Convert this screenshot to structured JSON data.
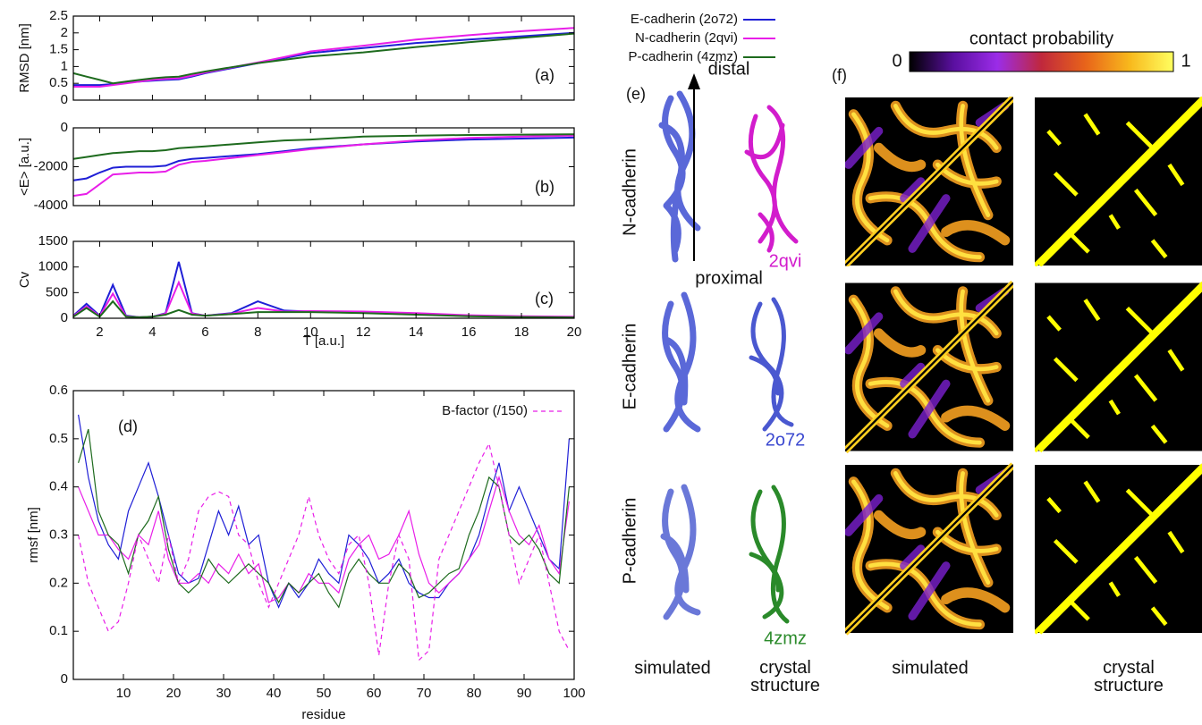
{
  "chart_data": [
    {
      "type": "line",
      "ylabel": "RMSD [nm]",
      "annotation": "(a)",
      "x": [
        1,
        1.5,
        2,
        2.5,
        3,
        3.5,
        4,
        4.5,
        5,
        5.5,
        6,
        7,
        8,
        9,
        10,
        12,
        14,
        16,
        18,
        20
      ],
      "xlim": [
        1,
        20
      ],
      "ylim": [
        0,
        2.5
      ],
      "yticks": [
        0,
        0.5,
        1,
        1.5,
        2,
        2.5
      ],
      "series": [
        {
          "name": "E-cadherin (2o72)",
          "color": "#1f1fd6",
          "values": [
            0.45,
            0.45,
            0.45,
            0.48,
            0.52,
            0.55,
            0.58,
            0.6,
            0.62,
            0.7,
            0.8,
            0.95,
            1.1,
            1.25,
            1.4,
            1.55,
            1.7,
            1.8,
            1.9,
            2.0
          ]
        },
        {
          "name": "N-cadherin (2qvi)",
          "color": "#e81ee8",
          "values": [
            0.4,
            0.4,
            0.4,
            0.45,
            0.5,
            0.55,
            0.6,
            0.63,
            0.65,
            0.73,
            0.82,
            0.97,
            1.12,
            1.28,
            1.45,
            1.62,
            1.8,
            1.93,
            2.05,
            2.15
          ]
        },
        {
          "name": "P-cadherin (4zmz)",
          "color": "#1e6b1e",
          "values": [
            0.8,
            0.7,
            0.6,
            0.5,
            0.55,
            0.6,
            0.65,
            0.68,
            0.7,
            0.78,
            0.85,
            0.98,
            1.1,
            1.2,
            1.3,
            1.42,
            1.58,
            1.72,
            1.85,
            1.98
          ]
        }
      ]
    },
    {
      "type": "line",
      "ylabel": "<E> [a.u.]",
      "annotation": "(b)",
      "x": [
        1,
        1.5,
        2,
        2.5,
        3,
        3.5,
        4,
        4.5,
        5,
        5.5,
        6,
        7,
        8,
        9,
        10,
        12,
        14,
        16,
        18,
        20
      ],
      "xlim": [
        1,
        20
      ],
      "ylim": [
        -4000,
        0
      ],
      "yticks": [
        -4000,
        -2000,
        0
      ],
      "series": [
        {
          "color": "#1f1fd6",
          "values": [
            -2700,
            -2600,
            -2300,
            -2050,
            -2000,
            -2000,
            -2000,
            -1950,
            -1700,
            -1600,
            -1550,
            -1450,
            -1350,
            -1200,
            -1050,
            -850,
            -700,
            -600,
            -550,
            -500
          ]
        },
        {
          "color": "#e81ee8",
          "values": [
            -3500,
            -3400,
            -2900,
            -2400,
            -2350,
            -2300,
            -2300,
            -2250,
            -1900,
            -1750,
            -1700,
            -1550,
            -1400,
            -1250,
            -1100,
            -850,
            -650,
            -520,
            -450,
            -400
          ]
        },
        {
          "color": "#1e6b1e",
          "values": [
            -1600,
            -1500,
            -1400,
            -1300,
            -1250,
            -1200,
            -1200,
            -1150,
            -1050,
            -1000,
            -950,
            -850,
            -750,
            -650,
            -600,
            -450,
            -400,
            -370,
            -350,
            -330
          ]
        }
      ]
    },
    {
      "type": "line",
      "ylabel": "Cv",
      "xlabel": "T [a.u.]",
      "annotation": "(c)",
      "x": [
        1,
        1.5,
        2,
        2.5,
        3,
        3.5,
        4,
        4.5,
        5,
        5.5,
        6,
        7,
        8,
        9,
        10,
        12,
        14,
        16,
        18,
        20
      ],
      "xlim": [
        1,
        20
      ],
      "xticks": [
        2,
        4,
        6,
        8,
        10,
        12,
        14,
        16,
        18,
        20
      ],
      "ylim": [
        0,
        1500
      ],
      "yticks": [
        0,
        500,
        1000,
        1500
      ],
      "series": [
        {
          "color": "#1f1fd6",
          "values": [
            50,
            280,
            50,
            650,
            50,
            20,
            30,
            100,
            1100,
            100,
            50,
            100,
            330,
            150,
            130,
            120,
            80,
            50,
            30,
            20
          ]
        },
        {
          "color": "#e81ee8",
          "values": [
            40,
            230,
            40,
            480,
            40,
            20,
            30,
            90,
            700,
            90,
            50,
            90,
            200,
            130,
            140,
            130,
            100,
            60,
            40,
            30
          ]
        },
        {
          "color": "#1e6b1e",
          "values": [
            30,
            200,
            30,
            330,
            30,
            20,
            30,
            70,
            160,
            70,
            50,
            80,
            120,
            120,
            120,
            100,
            70,
            40,
            25,
            15
          ]
        }
      ]
    },
    {
      "type": "line",
      "ylabel": "rmsf [nm]",
      "xlabel": "residue",
      "annotation": "(d)",
      "x": [
        1,
        3,
        5,
        7,
        9,
        11,
        13,
        15,
        17,
        19,
        21,
        23,
        25,
        27,
        29,
        31,
        33,
        35,
        37,
        39,
        41,
        43,
        45,
        47,
        49,
        51,
        53,
        55,
        57,
        59,
        61,
        63,
        65,
        67,
        69,
        71,
        73,
        75,
        77,
        79,
        81,
        83,
        85,
        87,
        89,
        91,
        93,
        95,
        97,
        99
      ],
      "xlim": [
        0,
        100
      ],
      "xticks": [
        10,
        20,
        30,
        40,
        50,
        60,
        70,
        80,
        90,
        100
      ],
      "ylim": [
        0,
        0.6
      ],
      "yticks": [
        0,
        0.1,
        0.2,
        0.3,
        0.4,
        0.5,
        0.6
      ],
      "series": [
        {
          "color": "#1f1fd6",
          "values": [
            0.55,
            0.42,
            0.33,
            0.28,
            0.25,
            0.35,
            0.4,
            0.45,
            0.38,
            0.3,
            0.22,
            0.2,
            0.21,
            0.28,
            0.35,
            0.3,
            0.36,
            0.28,
            0.3,
            0.2,
            0.15,
            0.2,
            0.17,
            0.2,
            0.25,
            0.22,
            0.2,
            0.3,
            0.28,
            0.25,
            0.2,
            0.22,
            0.25,
            0.2,
            0.18,
            0.17,
            0.17,
            0.2,
            0.22,
            0.25,
            0.3,
            0.38,
            0.45,
            0.35,
            0.4,
            0.35,
            0.3,
            0.25,
            0.23,
            0.5
          ]
        },
        {
          "color": "#e81ee8",
          "values": [
            0.4,
            0.35,
            0.3,
            0.3,
            0.27,
            0.25,
            0.3,
            0.28,
            0.35,
            0.25,
            0.2,
            0.2,
            0.22,
            0.2,
            0.24,
            0.22,
            0.26,
            0.22,
            0.24,
            0.16,
            0.17,
            0.2,
            0.18,
            0.22,
            0.2,
            0.2,
            0.18,
            0.25,
            0.28,
            0.3,
            0.25,
            0.26,
            0.3,
            0.35,
            0.26,
            0.2,
            0.18,
            0.2,
            0.22,
            0.25,
            0.28,
            0.35,
            0.42,
            0.35,
            0.3,
            0.28,
            0.32,
            0.25,
            0.22,
            0.37
          ]
        },
        {
          "color": "#1e6b1e",
          "values": [
            0.45,
            0.52,
            0.35,
            0.3,
            0.28,
            0.22,
            0.3,
            0.33,
            0.38,
            0.27,
            0.2,
            0.18,
            0.2,
            0.25,
            0.22,
            0.2,
            0.22,
            0.24,
            0.22,
            0.2,
            0.16,
            0.2,
            0.18,
            0.2,
            0.22,
            0.18,
            0.15,
            0.22,
            0.25,
            0.22,
            0.2,
            0.2,
            0.24,
            0.22,
            0.17,
            0.18,
            0.2,
            0.22,
            0.23,
            0.3,
            0.35,
            0.42,
            0.4,
            0.3,
            0.28,
            0.3,
            0.27,
            0.22,
            0.2,
            0.4
          ]
        },
        {
          "name": "B-factor (/150)",
          "color": "#e81ee8",
          "dashed": true,
          "values": [
            0.3,
            0.2,
            0.15,
            0.1,
            0.12,
            0.2,
            0.3,
            0.25,
            0.2,
            0.3,
            0.2,
            0.25,
            0.35,
            0.38,
            0.39,
            0.38,
            0.3,
            0.28,
            0.2,
            0.15,
            0.2,
            0.25,
            0.3,
            0.38,
            0.3,
            0.25,
            0.22,
            0.28,
            0.3,
            0.2,
            0.05,
            0.2,
            0.3,
            0.25,
            0.04,
            0.06,
            0.25,
            0.3,
            0.35,
            0.4,
            0.45,
            0.49,
            0.4,
            0.3,
            0.2,
            0.25,
            0.3,
            0.2,
            0.1,
            0.06
          ]
        }
      ]
    },
    {
      "type": "colorbar",
      "title": "contact probability",
      "xlim": [
        0,
        1
      ],
      "xticks": [
        0,
        1
      ],
      "colors": [
        "#000000",
        "#5a0fa0",
        "#9b2ce8",
        "#c0283c",
        "#e8641a",
        "#f8b81c",
        "#ffff60"
      ]
    }
  ],
  "panel_e": {
    "label": "(e)",
    "rows": [
      "N-cadherin",
      "E-cadherin",
      "P-cadherin"
    ],
    "pdb": [
      "2qvi",
      "2o72",
      "4zmz"
    ],
    "distal": "distal",
    "proximal": "proximal",
    "simulated": "simulated",
    "crystal": "crystal structure"
  },
  "panel_f": {
    "label": "(f)",
    "simulated": "simulated",
    "crystal": "crystal structure"
  }
}
